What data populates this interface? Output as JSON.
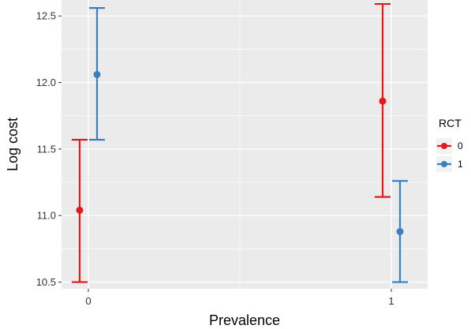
{
  "chart_data": {
    "type": "errorbar",
    "xlabel": "Prevalence",
    "ylabel": "Log cost",
    "categories": [
      "0",
      "1"
    ],
    "ylim": [
      10.45,
      12.62
    ],
    "yticks": [
      "10.5",
      "11.0",
      "11.5",
      "12.0",
      "12.5"
    ],
    "grid": true,
    "legend": {
      "title": "RCT",
      "position": "right"
    },
    "series": [
      {
        "name": "0",
        "color": "#e31a1c",
        "points": [
          {
            "x": "0",
            "y": 11.04,
            "ymin": 10.5,
            "ymax": 11.57
          },
          {
            "x": "1",
            "y": 11.86,
            "ymin": 11.14,
            "ymax": 12.59
          }
        ]
      },
      {
        "name": "1",
        "color": "#3a7fc1",
        "points": [
          {
            "x": "0",
            "y": 12.06,
            "ymin": 11.57,
            "ymax": 12.56
          },
          {
            "x": "1",
            "y": 10.88,
            "ymin": 10.5,
            "ymax": 11.26
          }
        ]
      }
    ],
    "panel_background": "#ebebeb",
    "grid_color": "#ffffff"
  }
}
